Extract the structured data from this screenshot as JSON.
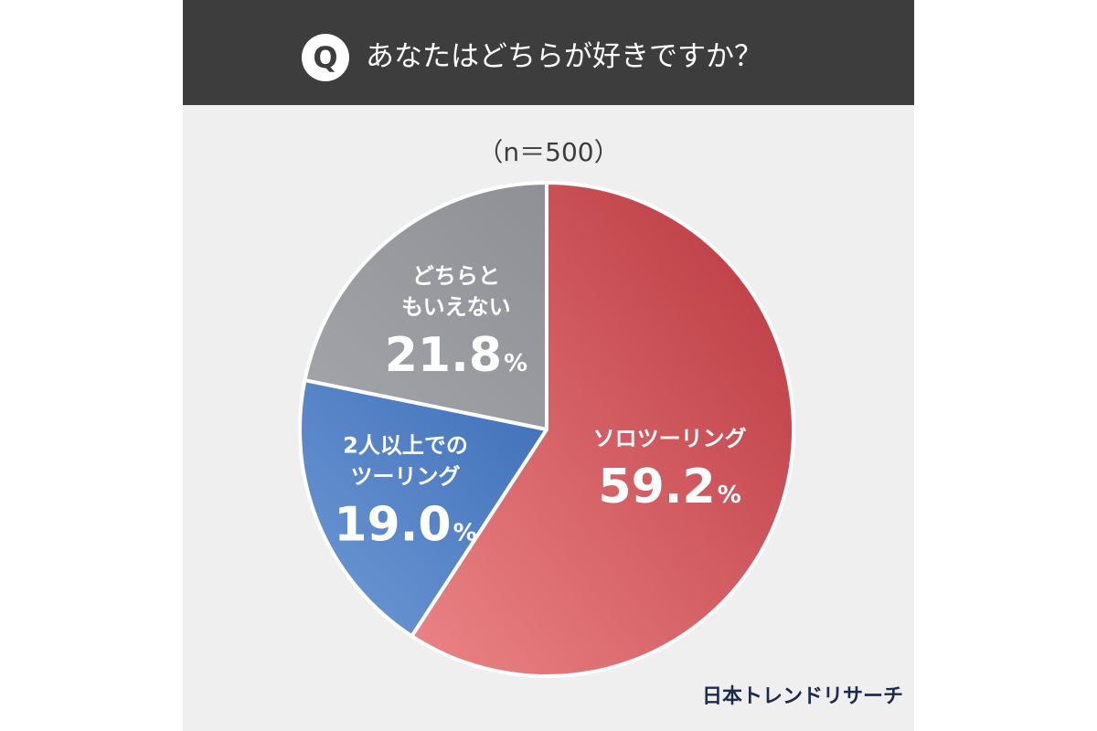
{
  "header": {
    "badge": "Q",
    "question": "あなたはどちらが好きですか？"
  },
  "sample_size": "（n＝500）",
  "logo_text": "日本トレンドリサーチ",
  "colors": {
    "header_bg": "#3d3d3d",
    "card_bg": "#efefef",
    "solo": "#c9474d",
    "group": "#4f7fc4",
    "neither": "#9a9ca1"
  },
  "chart_data": {
    "type": "pie",
    "title": "あなたはどちらが好きですか？",
    "categories": [
      "ソロツーリング",
      "2人以上でのツーリング",
      "どちらともいえない"
    ],
    "values": [
      59.2,
      19.0,
      21.8
    ],
    "unit": "%",
    "slices": [
      {
        "label_lines": [
          "ソロツーリング"
        ],
        "value": 59.2,
        "value_text": "59.2",
        "percent_sign": "%",
        "color": "#c9474d"
      },
      {
        "label_lines": [
          "2人以上での",
          "ツーリング"
        ],
        "value": 19.0,
        "value_text": "19.0",
        "percent_sign": "%",
        "color": "#4f7fc4"
      },
      {
        "label_lines": [
          "どちらと",
          "もいえない"
        ],
        "value": 21.8,
        "value_text": "21.8",
        "percent_sign": "%",
        "color": "#9a9ca1"
      }
    ]
  }
}
